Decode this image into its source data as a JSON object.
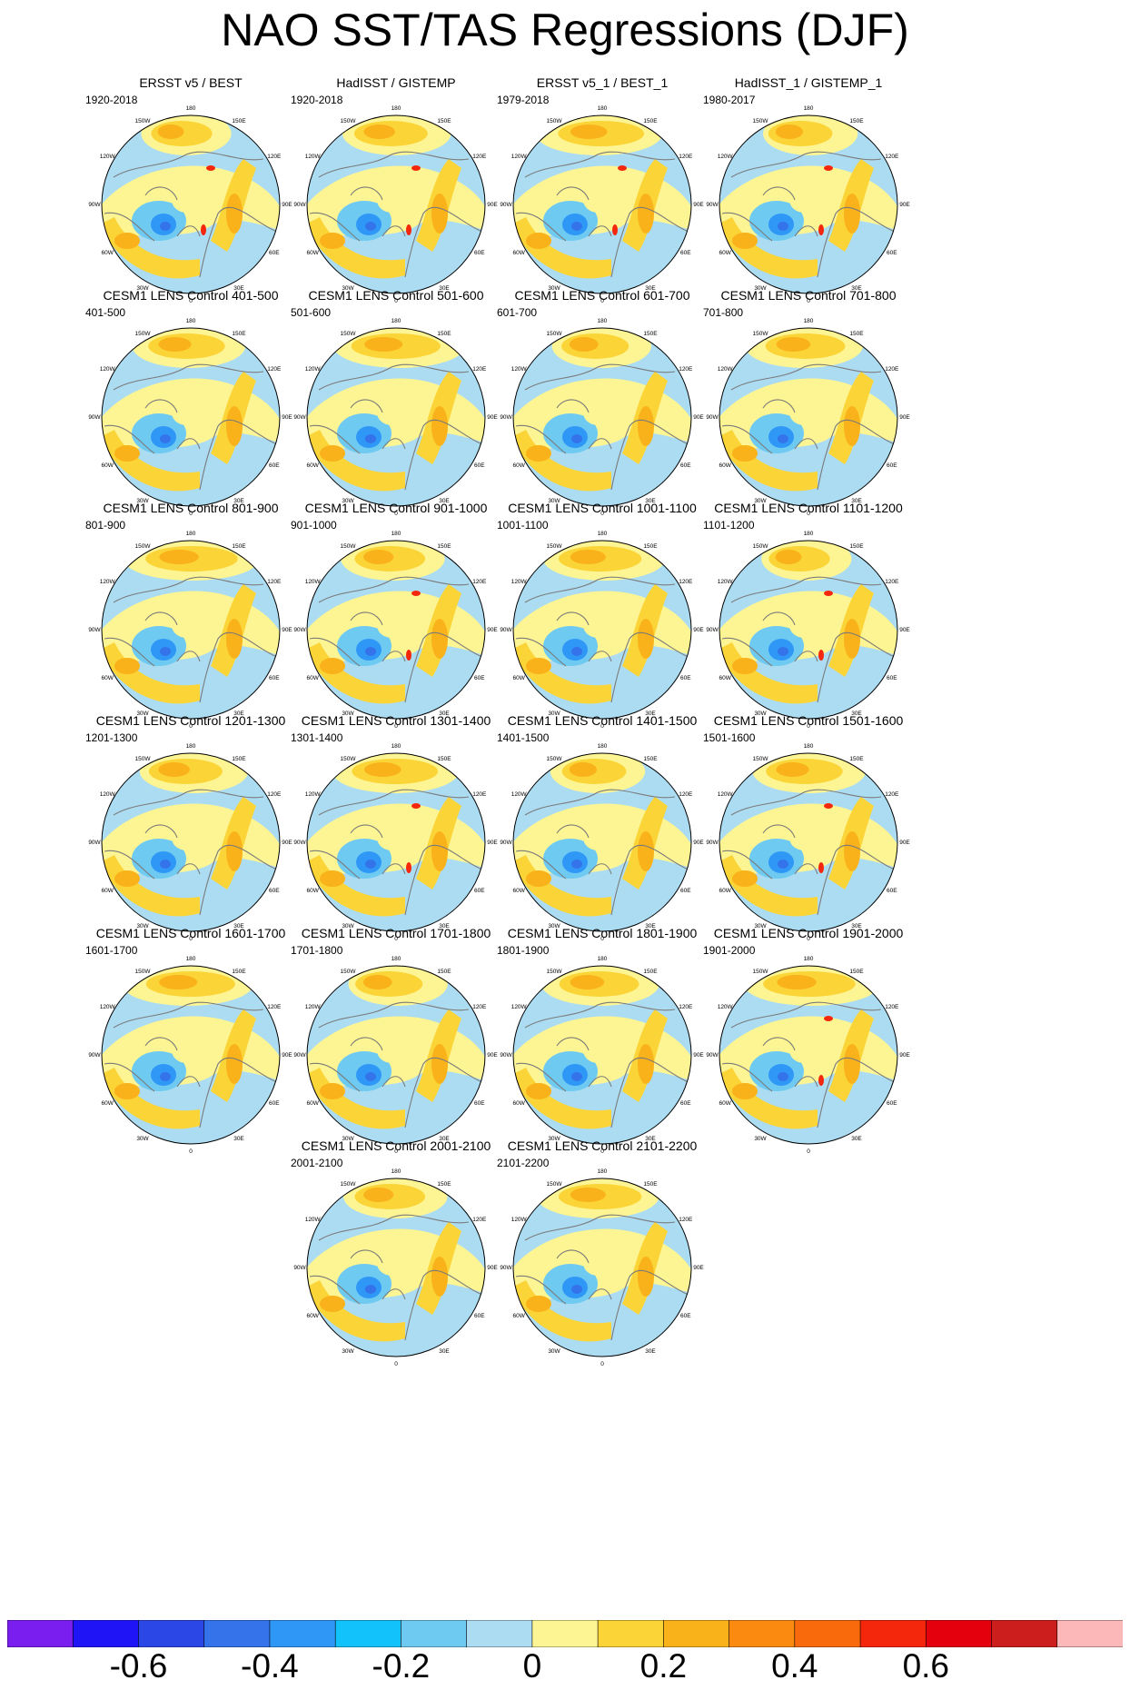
{
  "title": "NAO SST/TAS Regressions (DJF)",
  "longitude_labels": [
    "180",
    "150E",
    "120E",
    "90E",
    "60E",
    "30E",
    "0",
    "30W",
    "60W",
    "90W",
    "120W",
    "150W"
  ],
  "panels": [
    {
      "title": "ERSST v5 / BEST",
      "period": "1920-2018"
    },
    {
      "title": "HadISST / GISTEMP",
      "period": "1920-2018"
    },
    {
      "title": "ERSST v5_1 / BEST_1",
      "period": "1979-2018"
    },
    {
      "title": "HadISST_1 / GISTEMP_1",
      "period": "1980-2017"
    },
    {
      "title": "CESM1 LENS Control 401-500",
      "period": "401-500"
    },
    {
      "title": "CESM1 LENS Control 501-600",
      "period": "501-600"
    },
    {
      "title": "CESM1 LENS Control 601-700",
      "period": "601-700"
    },
    {
      "title": "CESM1 LENS Control 701-800",
      "period": "701-800"
    },
    {
      "title": "CESM1 LENS Control 801-900",
      "period": "801-900"
    },
    {
      "title": "CESM1 LENS Control 901-1000",
      "period": "901-1000"
    },
    {
      "title": "CESM1 LENS Control 1001-1100",
      "period": "1001-1100"
    },
    {
      "title": "CESM1 LENS Control 1101-1200",
      "period": "1101-1200"
    },
    {
      "title": "CESM1 LENS Control 1201-1300",
      "period": "1201-1300"
    },
    {
      "title": "CESM1 LENS Control 1301-1400",
      "period": "1301-1400"
    },
    {
      "title": "CESM1 LENS Control 1401-1500",
      "period": "1401-1500"
    },
    {
      "title": "CESM1 LENS Control 1501-1600",
      "period": "1501-1600"
    },
    {
      "title": "CESM1 LENS Control 1601-1700",
      "period": "1601-1700"
    },
    {
      "title": "CESM1 LENS Control 1701-1800",
      "period": "1701-1800"
    },
    {
      "title": "CESM1 LENS Control 1801-1900",
      "period": "1801-1900"
    },
    {
      "title": "CESM1 LENS Control 1901-2000",
      "period": "1901-2000"
    },
    {
      "title": "CESM1 LENS Control 2001-2100",
      "period": "2001-2100"
    },
    {
      "title": "CESM1 LENS Control 2101-2200",
      "period": "2101-2200"
    }
  ],
  "colorbar": {
    "colors": [
      "#7a1ef0",
      "#1e14f5",
      "#2b47e6",
      "#3573ea",
      "#2f98f7",
      "#12c2fa",
      "#6fcaf2",
      "#acdcf2",
      "#fdf593",
      "#fbd437",
      "#fab21a",
      "#fb8b10",
      "#f96a0d",
      "#f4270c",
      "#e4000d",
      "#cd1e1e",
      "#fcb7b8"
    ],
    "levels": [
      -0.7,
      -0.6,
      -0.5,
      -0.4,
      -0.3,
      -0.2,
      -0.1,
      0,
      0.1,
      0.2,
      0.3,
      0.4,
      0.5,
      0.6,
      0.7
    ],
    "labels": [
      "-0.6",
      "-0.4",
      "-0.2",
      "0",
      "0.2",
      "0.4",
      "0.6"
    ],
    "label_values": [
      -0.6,
      -0.4,
      -0.2,
      0,
      0.2,
      0.4,
      0.6
    ]
  }
}
